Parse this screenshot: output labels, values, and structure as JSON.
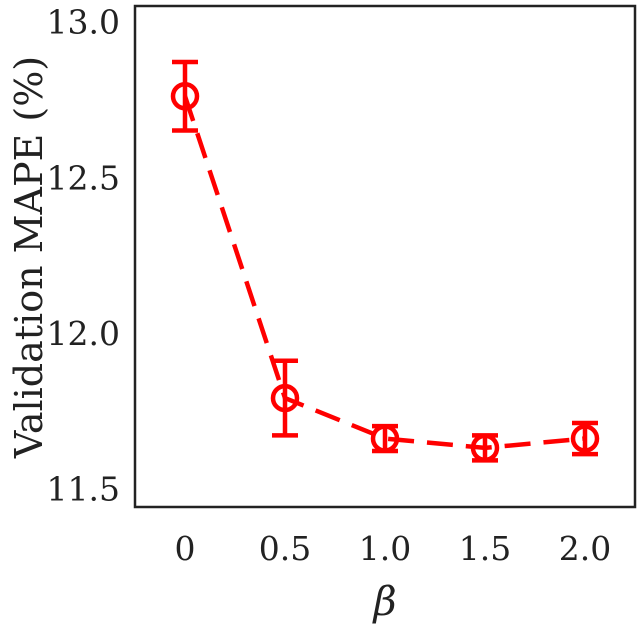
{
  "chart_data": {
    "type": "line",
    "title": "",
    "xlabel": "β",
    "ylabel": "Validation MAPE (%)",
    "x": [
      0,
      0.5,
      1.0,
      1.5,
      2.0
    ],
    "x_tick_labels": [
      "0",
      "0.5",
      "1.0",
      "1.5",
      "2.0"
    ],
    "y_tick_values": [
      11.5,
      12.0,
      12.5,
      13.0
    ],
    "y_tick_labels": [
      "11.5",
      "12.0",
      "12.5",
      "13.0"
    ],
    "xlim": [
      -0.25,
      2.25
    ],
    "ylim": [
      11.45,
      13.06
    ],
    "grid": false,
    "series": [
      {
        "values": [
          12.77,
          11.8,
          11.67,
          11.64,
          11.67
        ],
        "error": [
          0.11,
          0.12,
          0.04,
          0.04,
          0.05
        ],
        "color": "#ff0000",
        "line_style": "dashed",
        "marker": "open-circle"
      }
    ]
  }
}
